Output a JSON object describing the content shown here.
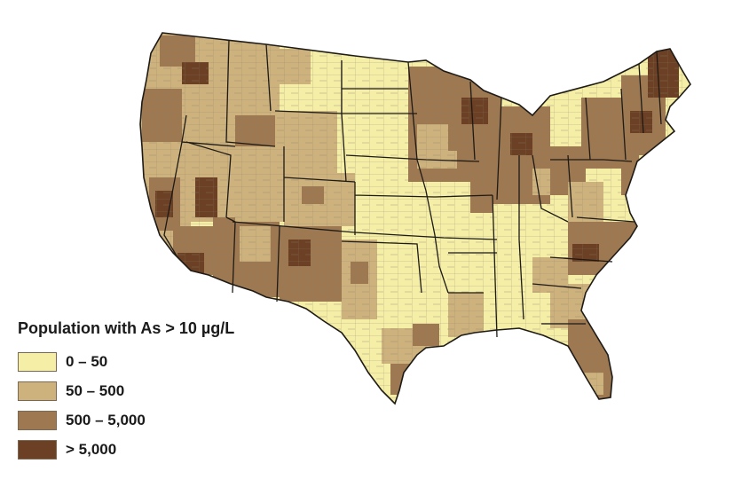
{
  "map": {
    "subject": "Contiguous United States county choropleth",
    "shading": "population with arsenic above 10 ug/L per county"
  },
  "legend": {
    "title": "Population with As > 10 µg/L",
    "classes": [
      {
        "label": "0 – 50",
        "color": "#f4eea6"
      },
      {
        "label": "50 – 500",
        "color": "#cdb27e"
      },
      {
        "label": "500 – 5,000",
        "color": "#9d7850"
      },
      {
        "label": "> 5,000",
        "color": "#6b4024"
      }
    ]
  },
  "colors": {
    "county_border": "#6f6555",
    "state_border": "#1e1a16",
    "background": "#ffffff"
  }
}
